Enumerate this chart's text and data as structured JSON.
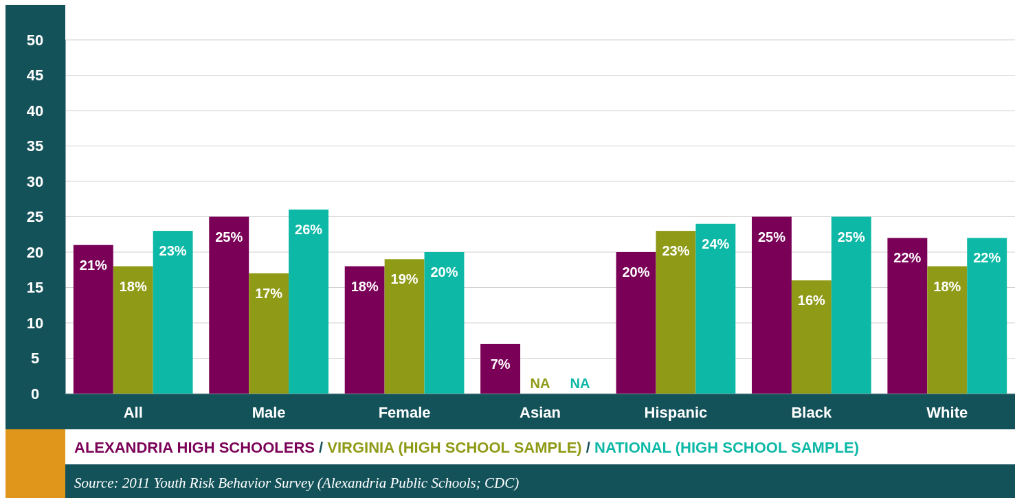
{
  "chart_data": {
    "type": "bar",
    "categories": [
      "All",
      "Male",
      "Female",
      "Asian",
      "Hispanic",
      "Black",
      "White"
    ],
    "series": [
      {
        "name": "ALEXANDRIA HIGH SCHOOLERS",
        "color": "#7a0057",
        "values": [
          21,
          25,
          18,
          7,
          20,
          25,
          22
        ],
        "value_labels": [
          "21%",
          "25%",
          "18%",
          "7%",
          "20%",
          "25%",
          "22%"
        ]
      },
      {
        "name": "VIRGINIA (HIGH SCHOOL SAMPLE)",
        "color": "#8f9a16",
        "values": [
          18,
          17,
          19,
          null,
          23,
          16,
          18
        ],
        "value_labels": [
          "18%",
          "17%",
          "19%",
          "NA",
          "23%",
          "16%",
          "18%"
        ]
      },
      {
        "name": "NATIONAL (HIGH SCHOOL SAMPLE)",
        "color": "#0db8a6",
        "values": [
          23,
          26,
          20,
          null,
          24,
          25,
          22
        ],
        "value_labels": [
          "23%",
          "26%",
          "20%",
          "NA",
          "24%",
          "25%",
          "22%"
        ]
      }
    ],
    "ylim": [
      0,
      50
    ],
    "yticks": [
      0,
      5,
      10,
      15,
      20,
      25,
      30,
      35,
      40,
      45,
      50
    ],
    "grid": "y",
    "legend": "bottom",
    "annotations": [
      "Source: 2011 Youth Risk Behavior Survey (Alexandria Public Schools; CDC)",
      "/",
      "/"
    ]
  }
}
